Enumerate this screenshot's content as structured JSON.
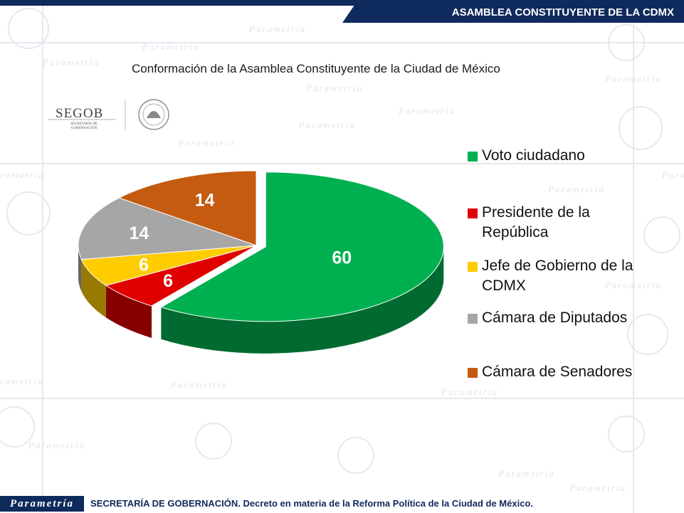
{
  "header": {
    "title": "ASAMBLEA CONSTITUYENTE DE LA CDMX"
  },
  "subtitle": "Conformación de la Asamblea Constituyente de la Ciudad de México",
  "logo": {
    "text": "SEGOB",
    "subtext": "SECRETARÍA DE GOBERNACIÓN"
  },
  "watermark": "Parametría",
  "footer": {
    "brand": "Parametría",
    "text": "SECRETARÍA DE GOBERNACIÓN.  Decreto en materia de la Reforma Política de la Ciudad de México."
  },
  "colors": {
    "navy": "#0f2a5c"
  },
  "chart_data": {
    "type": "pie",
    "title": "Conformación de la Asamblea Constituyente de la Ciudad de México",
    "categories": [
      "Voto ciudadano",
      "Presidente de la República",
      "Jefe de Gobierno de la CDMX",
      "Cámara de Diputados",
      "Cámara de Senadores"
    ],
    "values": [
      60,
      6,
      6,
      14,
      14
    ],
    "colors": [
      "#00b050",
      "#e00000",
      "#ffcc00",
      "#a6a6a6",
      "#c55a11"
    ],
    "exploded": [
      "Voto ciudadano"
    ],
    "legend_position": "right",
    "style": "3d"
  }
}
